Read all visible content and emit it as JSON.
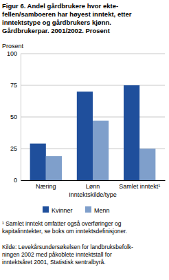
{
  "chart_data": {
    "type": "bar",
    "title": "Figur 6. Andel gårdbrukere hvor ekte-\nfellen/samboeren har høyest inntekt, etter\ninntektstype og gårdbrukers kjønn.\nGårdbrukerpar. 2001/2002. Prosent",
    "y_label": "Prosent",
    "x_label": "Inntektskilde/type",
    "categories": [
      "Næring",
      "Lønn",
      "Samlet inntekt¹"
    ],
    "series": [
      {
        "name": "Kvinner",
        "color": "#1f4f9c",
        "values": [
          29,
          70,
          75
        ]
      },
      {
        "name": "Menn",
        "color": "#7f9fcb",
        "values": [
          19,
          47,
          25
        ]
      }
    ],
    "ylim": [
      0,
      100
    ],
    "yticks": [
      0,
      25,
      50,
      75,
      100
    ],
    "grid": true,
    "legend": "bottom",
    "footnote": "¹ Samlet inntekt omfatter også overføringer og\nkapitalinntekter, se boks om inntektsdefinisjoner.",
    "source": "Kilde: Levekårsundersøkelsen for landbruksbefolk-\nningen 2002 med påkoblete inntektstall for\ninntektsåret 2001, Statistisk sentralbyrå."
  }
}
